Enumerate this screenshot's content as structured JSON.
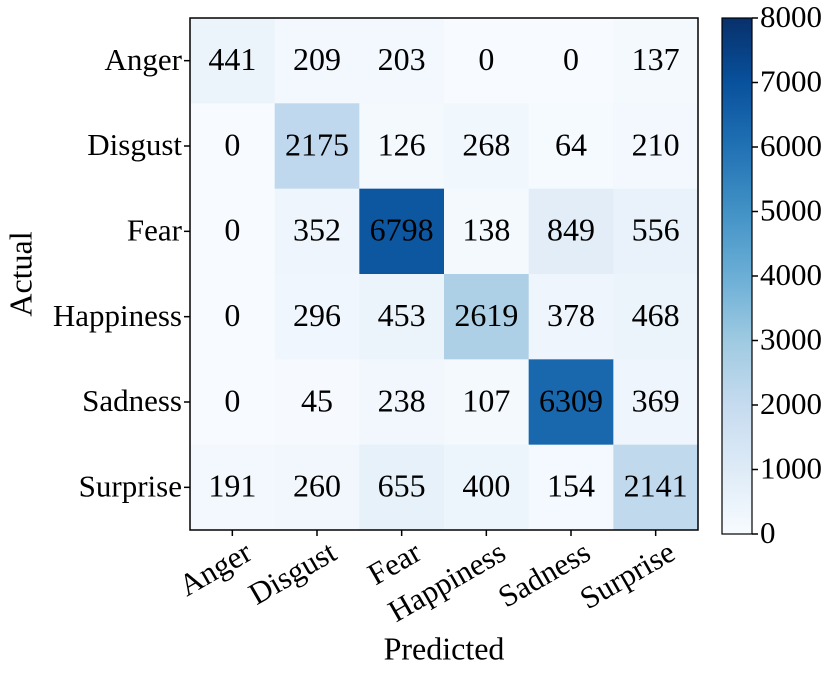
{
  "chart_data": {
    "type": "heatmap",
    "x_categories": [
      "Anger",
      "Disgust",
      "Fear",
      "Happiness",
      "Sadness",
      "Surprise"
    ],
    "y_categories": [
      "Anger",
      "Disgust",
      "Fear",
      "Happiness",
      "Sadness",
      "Surprise"
    ],
    "values": [
      [
        441,
        209,
        203,
        0,
        0,
        137
      ],
      [
        0,
        2175,
        126,
        268,
        64,
        210
      ],
      [
        0,
        352,
        6798,
        138,
        849,
        556
      ],
      [
        0,
        296,
        453,
        2619,
        378,
        468
      ],
      [
        0,
        45,
        238,
        107,
        6309,
        369
      ],
      [
        191,
        260,
        655,
        400,
        154,
        2141
      ]
    ],
    "xlabel": "Predicted",
    "ylabel": "Actual",
    "colormap": "Blues",
    "zlim": [
      0,
      8000
    ],
    "zticks": [
      0,
      1000,
      2000,
      3000,
      4000,
      5000,
      6000,
      7000,
      8000
    ]
  }
}
